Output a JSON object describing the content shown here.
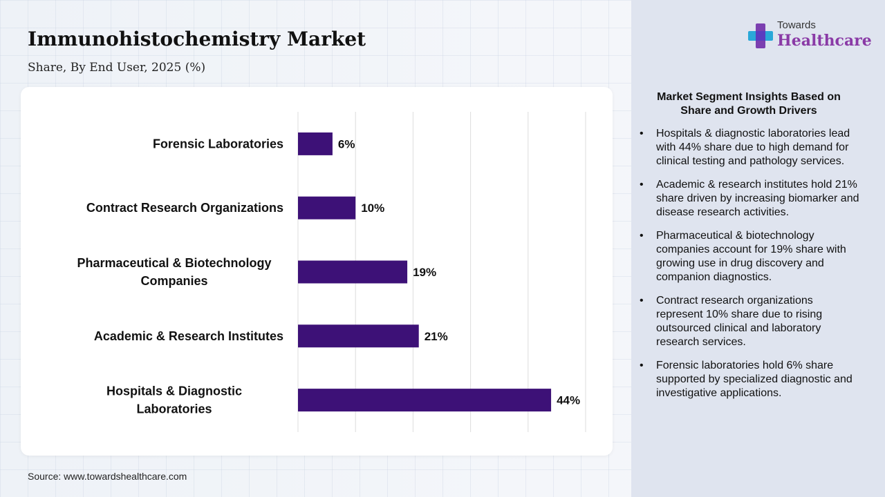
{
  "header": {
    "title": "Immunohistochemistry Market",
    "subtitle": "Share, By End User, 2025 (%)"
  },
  "logo": {
    "line1": "Towards",
    "line2": "Healthcare",
    "icon": "plus-cross-icon"
  },
  "chart_data": {
    "type": "bar",
    "orientation": "horizontal",
    "categories": [
      "Forensic Laboratories",
      "Contract Research Organizations",
      "Pharmaceutical & Biotechnology Companies",
      "Academic & Research Institutes",
      "Hospitals & Diagnostic Laboratories"
    ],
    "values": [
      6,
      10,
      19,
      21,
      44
    ],
    "data_labels": [
      "6%",
      "10%",
      "19%",
      "21%",
      "44%"
    ],
    "xlim": [
      0,
      50
    ],
    "grid": true,
    "bar_color": "#3d1177"
  },
  "insights": {
    "heading": "Market Segment Insights Based on Share and Growth Drivers",
    "bullet": "•",
    "items": [
      "Hospitals & diagnostic laboratories lead with 44% share due to high demand for clinical testing and pathology services.",
      "Academic & research institutes hold 21% share driven by increasing biomarker and disease research activities.",
      "Pharmaceutical & biotechnology companies account for 19% share with growing use in drug discovery and companion diagnostics.",
      "Contract research organizations represent 10% share due to rising outsourced clinical and laboratory research services.",
      "Forensic laboratories hold 6% share supported by specialized diagnostic and investigative applications."
    ]
  },
  "footer": {
    "source": "Source: www.towardshealthcare.com"
  }
}
